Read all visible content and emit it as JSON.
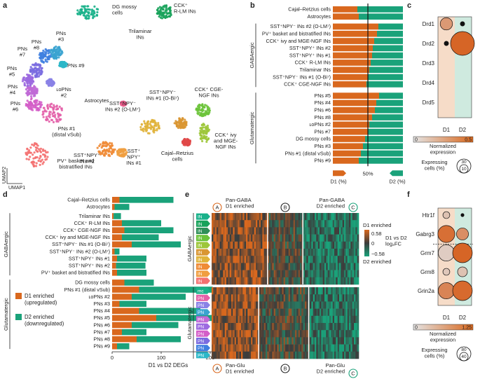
{
  "panels": {
    "a": "a",
    "b": "b",
    "c": "c",
    "d": "d",
    "e": "e",
    "f": "f"
  },
  "colors": {
    "d1": "#d9681e",
    "d2": "#1aa27a",
    "d1bg": "#f6dcc8",
    "d2bg": "#cfeadf"
  },
  "umap": {
    "clusters": [
      {
        "label": "DG mossy\ncells",
        "color": "#19b18a"
      },
      {
        "label": "CCK⁺\nR-LM INs",
        "color": "#17a25a"
      },
      {
        "label": "Trilaminar\nINs",
        "color": "#2f8f58"
      },
      {
        "label": "PNs\n#8",
        "color": "#3f7fe0"
      },
      {
        "label": "PNs\n#3",
        "color": "#3aa3d0"
      },
      {
        "label": "PNs #9",
        "color": "#2cb7c8"
      },
      {
        "label": "PNs\n#7",
        "color": "#7a6ce0"
      },
      {
        "label": "PNs\n#5",
        "color": "#9c6ae0"
      },
      {
        "label": "ʟᴏPNs\n#2",
        "color": "#8a82e6"
      },
      {
        "label": "PNs\n#4",
        "color": "#c06ad6"
      },
      {
        "label": "PNs\n#6",
        "color": "#d45ec8"
      },
      {
        "label": "PNs #1\n(distal vSub)",
        "color": "#e35fa8"
      },
      {
        "label": "Astrocytes",
        "color": "#e85a8a"
      },
      {
        "label": "SST⁺NPY⁻\nINs #1 (O-Bi⁷)",
        "color": "#d99632"
      },
      {
        "label": "SST⁺NPY⁻\nINs #2 (O-LM⁷)",
        "color": "#e0b33a"
      },
      {
        "label": "CCK⁺ CGE-\nNGF INs",
        "color": "#6cc33a"
      },
      {
        "label": "CCK⁺ ivy\nand MGE-\nNGF INs",
        "color": "#9dc63a"
      },
      {
        "label": "Cajal–Retzius\ncells",
        "color": "#e04848"
      },
      {
        "label": "SST⁺NPY⁺\nINs #2",
        "color": "#ef8b36"
      },
      {
        "label": "SST⁺\nNPY⁺\nINs #1",
        "color": "#f09e40"
      },
      {
        "label": "PV⁺ basket and\nbistratified INs",
        "color": "#f47070"
      }
    ],
    "xaxis": "UMAP1",
    "yaxis": "UMAP2"
  },
  "chart_data": [
    {
      "type": "bar",
      "panel": "b",
      "stacked": true,
      "percent": true,
      "categories": [
        "Cajal–Retzius cells",
        "Astrocytes",
        "SST⁺NPY⁻ INs #2 (O-LM⁷)",
        "PV⁺ basket and bistratified INs",
        "CCK⁺ ivy and MGE-NGF INs",
        "SST⁺NPY⁺ INs #2",
        "SST⁺NPY⁺ INs #1",
        "CCK⁺ R-LM INs",
        "Trilaminar INs",
        "SST⁺NPY⁻ INs #1 (O-Bi⁷)",
        "CCK⁺ CGE-NGF INs",
        "PNs #5",
        "PNs #4",
        "PNs #6",
        "PNs #8",
        "ʟᴏPNs #2",
        "PNs #7",
        "DG mossy cells",
        "PNs #3",
        "PNs #1 (distal vSub)",
        "PNs #9"
      ],
      "series": [
        {
          "name": "D1 (%)",
          "values": [
            35,
            37,
            65,
            63,
            59,
            57,
            56,
            54,
            52,
            50,
            48,
            66,
            62,
            60,
            56,
            52,
            50,
            46,
            43,
            40,
            37
          ]
        },
        {
          "name": "D2 (%)",
          "values": [
            65,
            63,
            35,
            37,
            41,
            43,
            44,
            46,
            48,
            50,
            52,
            34,
            38,
            40,
            44,
            48,
            50,
            54,
            57,
            60,
            63
          ]
        }
      ],
      "groups": [
        {
          "label": "GABAergic"
        },
        {
          "label": "Glutamatergic"
        }
      ],
      "center_label": "50%",
      "xlabel_left": "D1 (%)",
      "xlabel_right": "D2 (%)"
    },
    {
      "type": "scatter",
      "panel": "c",
      "genes": [
        "Drd1",
        "Drd2",
        "Drd3",
        "Drd4",
        "Drd5"
      ],
      "groups": [
        "D1",
        "D2"
      ],
      "colorbar": {
        "min": "0",
        "max": "0.5",
        "label": "Normalized\nexpression"
      },
      "size_legend": {
        "label": "Expressing\ncells (%)",
        "values": [
          "30",
          "10"
        ]
      },
      "points": [
        {
          "gene": "Drd1",
          "group": "D1",
          "pct": 8,
          "expr": 0.28
        },
        {
          "gene": "Drd1",
          "group": "D2",
          "pct": 1,
          "expr": 0.02
        },
        {
          "gene": "Drd2",
          "group": "D1",
          "pct": 1,
          "expr": 0.02
        },
        {
          "gene": "Drd2",
          "group": "D2",
          "pct": 30,
          "expr": 0.48
        }
      ]
    },
    {
      "type": "bar",
      "panel": "d",
      "stacked": true,
      "categories": [
        "Cajal–Retzius cells",
        "Astrocytes",
        "Trilaminar INs",
        "CCK⁺ R-LM INs",
        "CCK⁺ CGE-NGF INs",
        "CCK⁺ ivy and MGE-NGF INs",
        "SST⁺NPY⁻ INs #1 (O-Bi⁷)",
        "SST⁺NPY⁻ INs #2 (O-LM⁷)",
        "SST⁺NPY⁺ INs #1",
        "SST⁺NPY⁺ INs #2",
        "PV⁺ basket and bistratified INs",
        "DG mossy cells",
        "PNs #1 (distal vSub)",
        "ʟᴏPNs #2",
        "PNs #3",
        "PNs #4",
        "PNs #5",
        "PNs #6",
        "PNs #7",
        "PNs #8",
        "PNs #9"
      ],
      "series": [
        {
          "name": "D1 enriched (upregulated)",
          "values": [
            15,
            5,
            3,
            20,
            25,
            20,
            40,
            5,
            10,
            8,
            10,
            25,
            55,
            40,
            15,
            55,
            90,
            40,
            20,
            50,
            10
          ]
        },
        {
          "name": "D2 enriched (downregulated)",
          "values": [
            110,
            30,
            15,
            80,
            100,
            75,
            100,
            10,
            60,
            60,
            60,
            60,
            150,
            110,
            55,
            125,
            135,
            95,
            50,
            90,
            25
          ]
        }
      ],
      "groups": [
        {
          "label": "GABAergic"
        },
        {
          "label": "Glutamatergic"
        }
      ],
      "xlabel": "D1 vs D2 DEGs",
      "xticks": [
        "0",
        "100",
        "200"
      ],
      "xlim": [
        0,
        240
      ]
    },
    {
      "type": "heatmap",
      "panel": "e",
      "top_rows": [
        "IN",
        "IN",
        "IN",
        "IN",
        "IN",
        "IN",
        "IN",
        "IN",
        "IN",
        "IN"
      ],
      "bottom_rows": [
        "mc",
        "PN",
        "PN",
        "PN",
        "PN",
        "PN",
        "PN",
        "PN",
        "PN",
        "PN"
      ],
      "top_labels": [
        {
          "circle": "A",
          "text": "Pan-GABA\nD1 enriched"
        },
        {
          "circle": "B",
          "text": ""
        },
        {
          "circle": "C",
          "text": "Pan-GABA\nD2 enriched"
        }
      ],
      "bottom_labels": [
        {
          "circle": "A",
          "text": "Pan-Glu\nD1 enriched"
        },
        {
          "circle": "B",
          "text": ""
        },
        {
          "circle": "C",
          "text": "Pan-Glu\nD2 enriched"
        }
      ],
      "group_top": "GABAergic",
      "group_bottom": "Glutamatergic",
      "colorbar": {
        "top": "D1 enriched",
        "max": "0.58",
        "mid": "0",
        "min": "−0.58",
        "bottom": "D2 enriched",
        "label": "D1 vs D2\nlog₂FC"
      }
    },
    {
      "type": "scatter",
      "panel": "f",
      "genes": [
        "Htr1f",
        "Gabrg3",
        "Grm7",
        "Grm8",
        "Grin2a"
      ],
      "groups": [
        "D1",
        "D2"
      ],
      "colorbar": {
        "min": "0",
        "max": "1.25",
        "label": "Normalized\nexpression"
      },
      "size_legend": {
        "label": "Expressing\ncells (%)",
        "values": [
          "80",
          "40"
        ]
      },
      "points": [
        {
          "gene": "Htr1f",
          "group": "D1",
          "pct": 10,
          "expr": 0.3
        },
        {
          "gene": "Htr1f",
          "group": "D2",
          "pct": 2,
          "expr": 0.05
        },
        {
          "gene": "Gabrg3",
          "group": "D1",
          "pct": 60,
          "expr": 1.1
        },
        {
          "gene": "Gabrg3",
          "group": "D2",
          "pct": 30,
          "expr": 0.8
        },
        {
          "gene": "Grm7",
          "group": "D1",
          "pct": 55,
          "expr": 0.2
        },
        {
          "gene": "Grm7",
          "group": "D2",
          "pct": 80,
          "expr": 1.2
        },
        {
          "gene": "Grm8",
          "group": "D1",
          "pct": 10,
          "expr": 0.25
        },
        {
          "gene": "Grm8",
          "group": "D2",
          "pct": 20,
          "expr": 0.3
        },
        {
          "gene": "Grin2a",
          "group": "D1",
          "pct": 55,
          "expr": 0.9
        },
        {
          "gene": "Grin2a",
          "group": "D2",
          "pct": 80,
          "expr": 1.15
        }
      ]
    }
  ]
}
